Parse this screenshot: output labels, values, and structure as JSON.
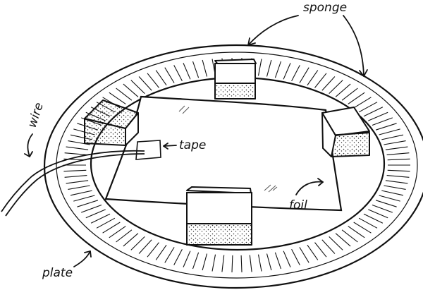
{
  "labels": {
    "sponge": "sponge",
    "wire": "wire",
    "tape": "tape",
    "foil": "foil",
    "plate": "plate"
  },
  "colors": {
    "ink": "#111111",
    "paper": "#ffffff",
    "stipple": "#333333"
  },
  "icons": [
    "paper-plate-icon",
    "aluminum-foil-icon",
    "sponge-cube-icon",
    "tape-strip-icon",
    "wire-icon"
  ]
}
